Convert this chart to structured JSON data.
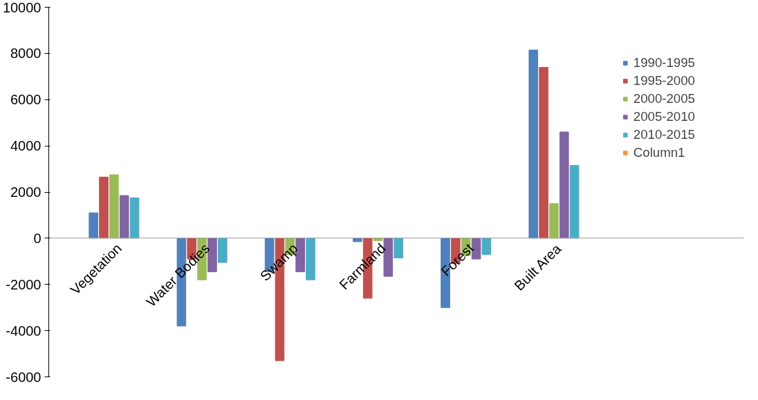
{
  "chart_data": {
    "type": "bar",
    "categories": [
      "Vegetation",
      "Water Bodies",
      "Swamp",
      "Farmland",
      "Forest",
      "Built Area"
    ],
    "series": [
      {
        "name": "1990-1995",
        "color": "#4f81bd",
        "values": [
          1100,
          -3800,
          -1450,
          -150,
          -3000,
          8150
        ]
      },
      {
        "name": "1995-2000",
        "color": "#c0504d",
        "values": [
          2650,
          -900,
          -5300,
          -2600,
          -1100,
          7400
        ]
      },
      {
        "name": "2000-2005",
        "color": "#9bbb59",
        "values": [
          2750,
          -1800,
          -700,
          -100,
          -750,
          1500
        ]
      },
      {
        "name": "2005-2010",
        "color": "#8064a2",
        "values": [
          1850,
          -1450,
          -1450,
          -1650,
          -900,
          4600
        ]
      },
      {
        "name": "2010-2015",
        "color": "#4bacc6",
        "values": [
          1750,
          -1050,
          -1800,
          -850,
          -700,
          3150
        ]
      },
      {
        "name": "Column1",
        "color": "#f79646",
        "values": [
          null,
          null,
          null,
          null,
          null,
          null
        ]
      }
    ],
    "ylim": [
      -6000,
      10000
    ],
    "yticks": [
      -6000,
      -4000,
      -2000,
      0,
      2000,
      4000,
      6000,
      8000,
      10000
    ],
    "grid": false,
    "legend": "right"
  }
}
